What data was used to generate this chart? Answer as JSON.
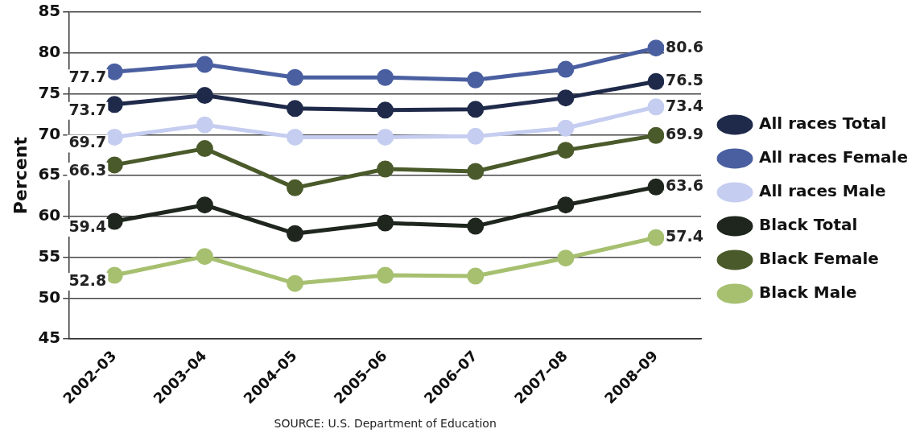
{
  "chart_data": {
    "type": "line",
    "ylabel": "Percent",
    "categories": [
      "2002–03",
      "2003–04",
      "2004–05",
      "2005–06",
      "2006–07",
      "2007–08",
      "2008–09"
    ],
    "series": [
      {
        "name": "All races Total",
        "color": "#1f2a4a",
        "values": [
          73.7,
          74.8,
          73.2,
          73.0,
          73.1,
          74.5,
          76.5
        ],
        "value_labels": [
          "73.7",
          null,
          null,
          null,
          null,
          null,
          "76.5"
        ]
      },
      {
        "name": "All races Female",
        "color": "#4a5fa0",
        "values": [
          77.7,
          78.6,
          77.0,
          77.0,
          76.7,
          78.0,
          80.6
        ],
        "value_labels": [
          "77.7",
          null,
          null,
          null,
          null,
          null,
          "80.6"
        ]
      },
      {
        "name": "All races Male",
        "color": "#c5cdf0",
        "values": [
          69.7,
          71.2,
          69.7,
          69.7,
          69.8,
          70.8,
          73.4
        ],
        "value_labels": [
          "69.7",
          null,
          null,
          null,
          null,
          null,
          "73.4"
        ]
      },
      {
        "name": "Black Total",
        "color": "#1e261e",
        "values": [
          59.4,
          61.4,
          57.9,
          59.2,
          58.8,
          61.4,
          63.6
        ],
        "value_labels": [
          "59.4",
          null,
          null,
          null,
          null,
          null,
          "63.6"
        ]
      },
      {
        "name": "Black Female",
        "color": "#4a5a2a",
        "values": [
          66.3,
          68.3,
          63.5,
          65.8,
          65.5,
          68.1,
          69.9
        ],
        "value_labels": [
          "66.3",
          null,
          null,
          null,
          null,
          null,
          "69.9"
        ]
      },
      {
        "name": "Black Male",
        "color": "#a6c070",
        "values": [
          52.8,
          55.1,
          51.8,
          52.8,
          52.7,
          54.9,
          57.4
        ],
        "value_labels": [
          "52.8",
          null,
          null,
          null,
          null,
          null,
          "57.4"
        ]
      }
    ],
    "ylim": [
      45,
      85
    ],
    "yticks": [
      45,
      50,
      55,
      60,
      65,
      70,
      75,
      80,
      85
    ],
    "grid": "y",
    "legend": "right",
    "marker": "circle",
    "line_style": "solid",
    "annotations": [
      "SOURCE: U.S. Department of Education"
    ]
  }
}
